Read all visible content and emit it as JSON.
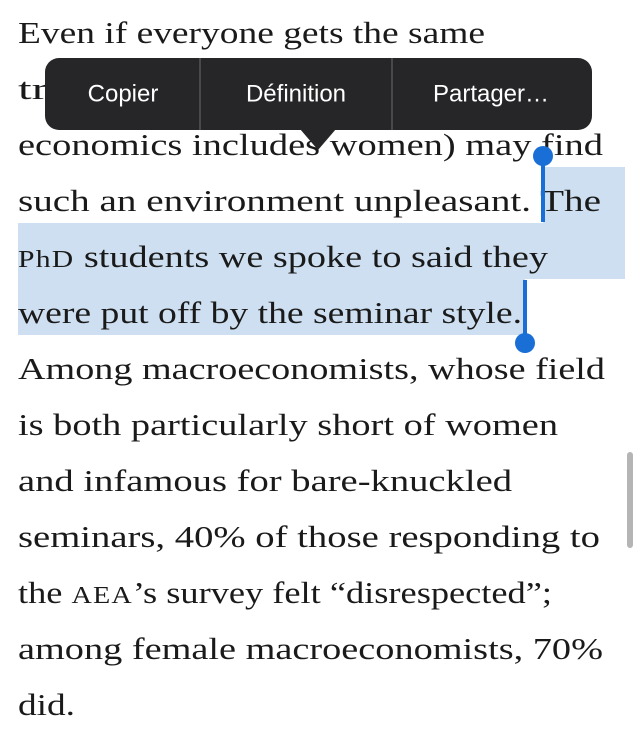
{
  "article": {
    "lines": [
      [
        {
          "text": "Even if everyone gets the same"
        }
      ],
      [
        {
          "text": "tr"
        }
      ],
      [
        {
          "text": "economics includes women) may find"
        }
      ],
      [
        {
          "text": "such an environment unpleasant. The"
        }
      ],
      [
        {
          "text": "PhD",
          "small_caps": true
        },
        {
          "text": " students we spoke to said they"
        }
      ],
      [
        {
          "text": "were put off by the seminar style."
        }
      ],
      [
        {
          "text": "Among macroeconomists, whose field"
        }
      ],
      [
        {
          "text": "is both particularly short of women"
        }
      ],
      [
        {
          "text": "and infamous for bare-knuckled"
        }
      ],
      [
        {
          "text": "seminars, 40% of those responding to"
        }
      ],
      [
        {
          "text": "the "
        },
        {
          "text": "AEA",
          "small_caps": true
        },
        {
          "text": "’s survey felt “disrespected”;"
        }
      ],
      [
        {
          "text": "among female macroeconomists, 70%"
        }
      ],
      [
        {
          "text": "did."
        }
      ]
    ]
  },
  "menu": {
    "items": [
      "Copier",
      "Définition",
      "Partager…"
    ]
  }
}
